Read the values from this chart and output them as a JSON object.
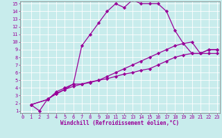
{
  "title": "",
  "xlabel": "Windchill (Refroidissement éolien,°C)",
  "ylabel": "",
  "bg_color": "#c8ecec",
  "line_color": "#990099",
  "grid_color": "#b0d8d8",
  "xmin": 0,
  "xmax": 23,
  "ymin": 1,
  "ymax": 15,
  "curve1_x": [
    1,
    2,
    3,
    4,
    5,
    6,
    7,
    8,
    9,
    10,
    11,
    12,
    13,
    14,
    15,
    16,
    17,
    18,
    19,
    20,
    21,
    22,
    23
  ],
  "curve1_y": [
    1.8,
    1.0,
    2.6,
    3.2,
    3.8,
    4.5,
    9.5,
    11.0,
    12.5,
    14.0,
    15.0,
    14.5,
    15.5,
    15.0,
    15.0,
    15.0,
    14.0,
    11.5,
    9.8,
    8.5,
    8.5,
    9.0,
    9.0
  ],
  "curve2_x": [
    1,
    3,
    4,
    5,
    6,
    7,
    8,
    9,
    10,
    11,
    12,
    13,
    14,
    15,
    16,
    17,
    18,
    19,
    20,
    21,
    22,
    23
  ],
  "curve2_y": [
    1.8,
    2.5,
    3.5,
    4.0,
    4.5,
    4.5,
    4.8,
    5.0,
    5.5,
    6.0,
    6.5,
    7.0,
    7.5,
    8.0,
    8.5,
    9.0,
    9.5,
    9.8,
    10.0,
    8.5,
    9.0,
    9.0
  ],
  "curve3_x": [
    1,
    3,
    4,
    5,
    6,
    7,
    8,
    9,
    10,
    11,
    12,
    13,
    14,
    15,
    16,
    17,
    18,
    19,
    20,
    21,
    22,
    23
  ],
  "curve3_y": [
    1.8,
    2.5,
    3.3,
    3.8,
    4.2,
    4.5,
    4.7,
    5.0,
    5.2,
    5.5,
    5.8,
    6.0,
    6.3,
    6.5,
    7.0,
    7.5,
    8.0,
    8.3,
    8.5,
    8.5,
    8.5,
    8.5
  ],
  "marker": "D",
  "marker_size": 2.2,
  "linewidth": 0.9,
  "tick_fontsize": 5.0,
  "label_fontsize": 5.5
}
